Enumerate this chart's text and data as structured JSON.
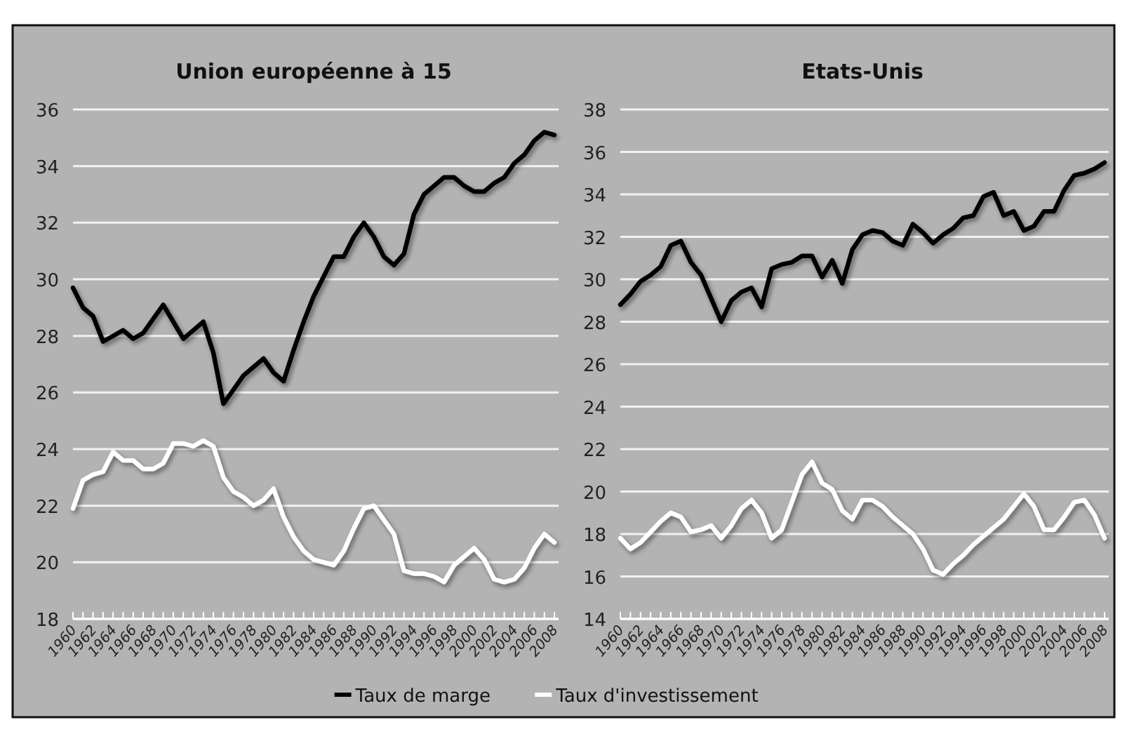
{
  "chart_data": [
    {
      "type": "line",
      "title": "Union européenne à 15",
      "categories": [
        "1960",
        null,
        "1962",
        null,
        "1964",
        null,
        "1966",
        null,
        "1968",
        null,
        "1970",
        null,
        "1972",
        null,
        "1974",
        null,
        "1976",
        null,
        "1978",
        null,
        "1980",
        null,
        "1982",
        null,
        "1984",
        null,
        "1986",
        null,
        "1988",
        null,
        "1990",
        null,
        "1992",
        null,
        "1994",
        null,
        "1996",
        null,
        "1998",
        null,
        "2000",
        null,
        "2002",
        null,
        "2004",
        null,
        "2006",
        null,
        "2008"
      ],
      "ylim": [
        18,
        36
      ],
      "yticks": [
        18,
        20,
        22,
        24,
        26,
        28,
        30,
        32,
        34,
        36
      ],
      "grid": "y",
      "legend": "bottom",
      "marker": "none",
      "line_style": "solid",
      "series": [
        {
          "name": "Taux de marge",
          "color": "#000000",
          "values": [
            29.7,
            29.0,
            28.7,
            27.8,
            28.0,
            28.2,
            27.9,
            28.1,
            28.6,
            29.1,
            28.5,
            27.9,
            28.2,
            28.5,
            27.4,
            25.6,
            26.1,
            26.6,
            26.9,
            27.2,
            26.7,
            26.4,
            27.5,
            28.5,
            29.4,
            30.1,
            30.8,
            30.8,
            31.5,
            32.0,
            31.5,
            30.8,
            30.5,
            30.9,
            32.3,
            33.0,
            33.3,
            33.6,
            33.6,
            33.3,
            33.1,
            33.1,
            33.4,
            33.6,
            34.1,
            34.4,
            34.9,
            35.2,
            35.1
          ]
        },
        {
          "name": "Taux d'investissement",
          "color": "#ffffff",
          "values": [
            21.9,
            22.9,
            23.1,
            23.2,
            23.9,
            23.6,
            23.6,
            23.3,
            23.3,
            23.5,
            24.2,
            24.2,
            24.1,
            24.3,
            24.1,
            23.0,
            22.5,
            22.3,
            22.0,
            22.2,
            22.6,
            21.6,
            20.9,
            20.4,
            20.1,
            20.0,
            19.9,
            20.4,
            21.2,
            21.9,
            22.0,
            21.5,
            21.0,
            19.7,
            19.6,
            19.6,
            19.5,
            19.3,
            19.9,
            20.2,
            20.5,
            20.1,
            19.4,
            19.3,
            19.4,
            19.8,
            20.5,
            21.0,
            20.7
          ]
        }
      ]
    },
    {
      "type": "line",
      "title": "Etats-Unis",
      "categories": [
        "1960",
        null,
        "1962",
        null,
        "1964",
        null,
        "1966",
        null,
        "1968",
        null,
        "1970",
        null,
        "1972",
        null,
        "1974",
        null,
        "1976",
        null,
        "1978",
        null,
        "1980",
        null,
        "1982",
        null,
        "1984",
        null,
        "1986",
        null,
        "1988",
        null,
        "1990",
        null,
        "1992",
        null,
        "1994",
        null,
        "1996",
        null,
        "1998",
        null,
        "2000",
        null,
        "2002",
        null,
        "2004",
        null,
        "2006",
        null,
        "2008"
      ],
      "ylim": [
        14,
        38
      ],
      "yticks": [
        14,
        16,
        18,
        20,
        22,
        24,
        26,
        28,
        30,
        32,
        34,
        36,
        38
      ],
      "grid": "y",
      "marker": "none",
      "line_style": "solid",
      "series": [
        {
          "color": "#000000",
          "values": [
            28.8,
            29.3,
            29.9,
            30.2,
            30.6,
            31.6,
            31.8,
            30.8,
            30.2,
            29.1,
            28.0,
            29.0,
            29.4,
            29.6,
            28.7,
            30.5,
            30.7,
            30.8,
            31.1,
            31.1,
            30.1,
            30.9,
            29.8,
            31.4,
            32.1,
            32.3,
            32.2,
            31.8,
            31.6,
            32.6,
            32.2,
            31.7,
            32.1,
            32.4,
            32.9,
            33.0,
            33.9,
            34.1,
            33.0,
            33.2,
            32.3,
            32.5,
            33.2,
            33.2,
            34.2,
            34.9,
            35.0,
            35.2,
            35.5
          ]
        },
        {
          "color": "#ffffff",
          "values": [
            17.8,
            17.3,
            17.6,
            18.1,
            18.6,
            19.0,
            18.8,
            18.1,
            18.2,
            18.4,
            17.8,
            18.4,
            19.2,
            19.6,
            19.0,
            17.8,
            18.2,
            19.5,
            20.8,
            21.4,
            20.4,
            20.1,
            19.1,
            18.7,
            19.6,
            19.6,
            19.3,
            18.8,
            18.4,
            18.0,
            17.3,
            16.3,
            16.1,
            16.6,
            17.0,
            17.5,
            17.9,
            18.3,
            18.7,
            19.3,
            19.9,
            19.3,
            18.2,
            18.2,
            18.8,
            19.5,
            19.6,
            18.9,
            17.8
          ]
        }
      ]
    }
  ]
}
